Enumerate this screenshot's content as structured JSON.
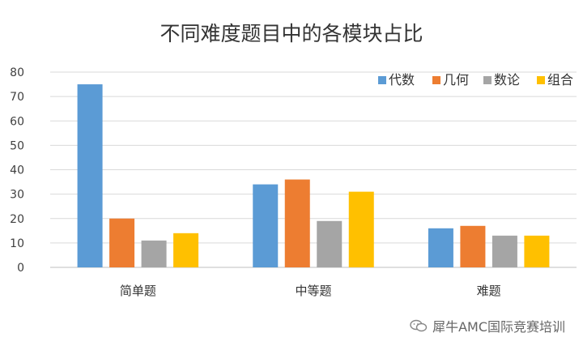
{
  "chart_data": {
    "type": "bar",
    "title": "不同难度题目中的各模块占比",
    "xlabel": "",
    "ylabel": "",
    "categories": [
      "简单题",
      "中等题",
      "难题"
    ],
    "series": [
      {
        "name": "代数",
        "color": "#5b9bd5",
        "values": [
          75,
          34,
          16
        ]
      },
      {
        "name": "几何",
        "color": "#ed7d31",
        "values": [
          20,
          36,
          17
        ]
      },
      {
        "name": "数论",
        "color": "#a5a5a5",
        "values": [
          11,
          19,
          13
        ]
      },
      {
        "name": "组合",
        "color": "#ffc000",
        "values": [
          14,
          31,
          13
        ]
      }
    ],
    "ylim": [
      0,
      80
    ],
    "yticks": [
      0,
      10,
      20,
      30,
      40,
      50,
      60,
      70,
      80
    ],
    "grid": true,
    "legend_position": "top-right"
  },
  "watermark": {
    "text": "犀牛AMC国际竞赛培训",
    "icon": "wechat-icon"
  }
}
